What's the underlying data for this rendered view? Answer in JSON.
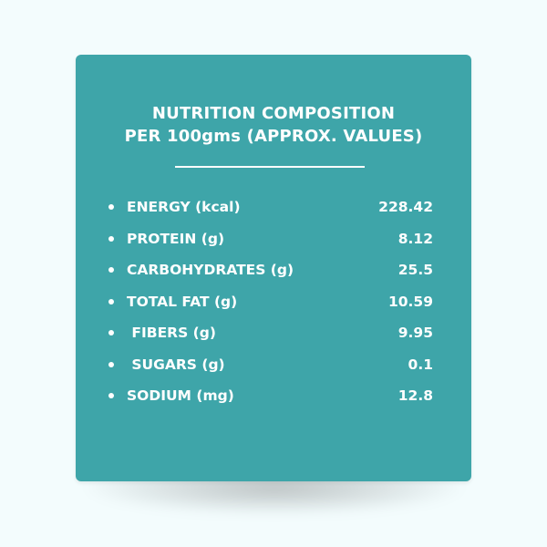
{
  "title": {
    "line1": "NUTRITION COMPOSITION",
    "line2": "PER 100gms (APPROX. VALUES)"
  },
  "nutrients": [
    {
      "label": "ENERGY (kcal)",
      "value": "228.42"
    },
    {
      "label": "PROTEIN (g)",
      "value": "8.12"
    },
    {
      "label": "CARBOHYDRATES (g)",
      "value": "25.5"
    },
    {
      "label": "TOTAL FAT (g)",
      "value": "10.59"
    },
    {
      "label": " FIBERS (g)",
      "value": "9.95"
    },
    {
      "label": " SUGARS (g)",
      "value": "0.1"
    },
    {
      "label": "SODIUM (mg)",
      "value": "12.8"
    }
  ],
  "colors": {
    "card": "#3ea5a9",
    "text": "#ffffff",
    "background": "#f3fcfd"
  }
}
